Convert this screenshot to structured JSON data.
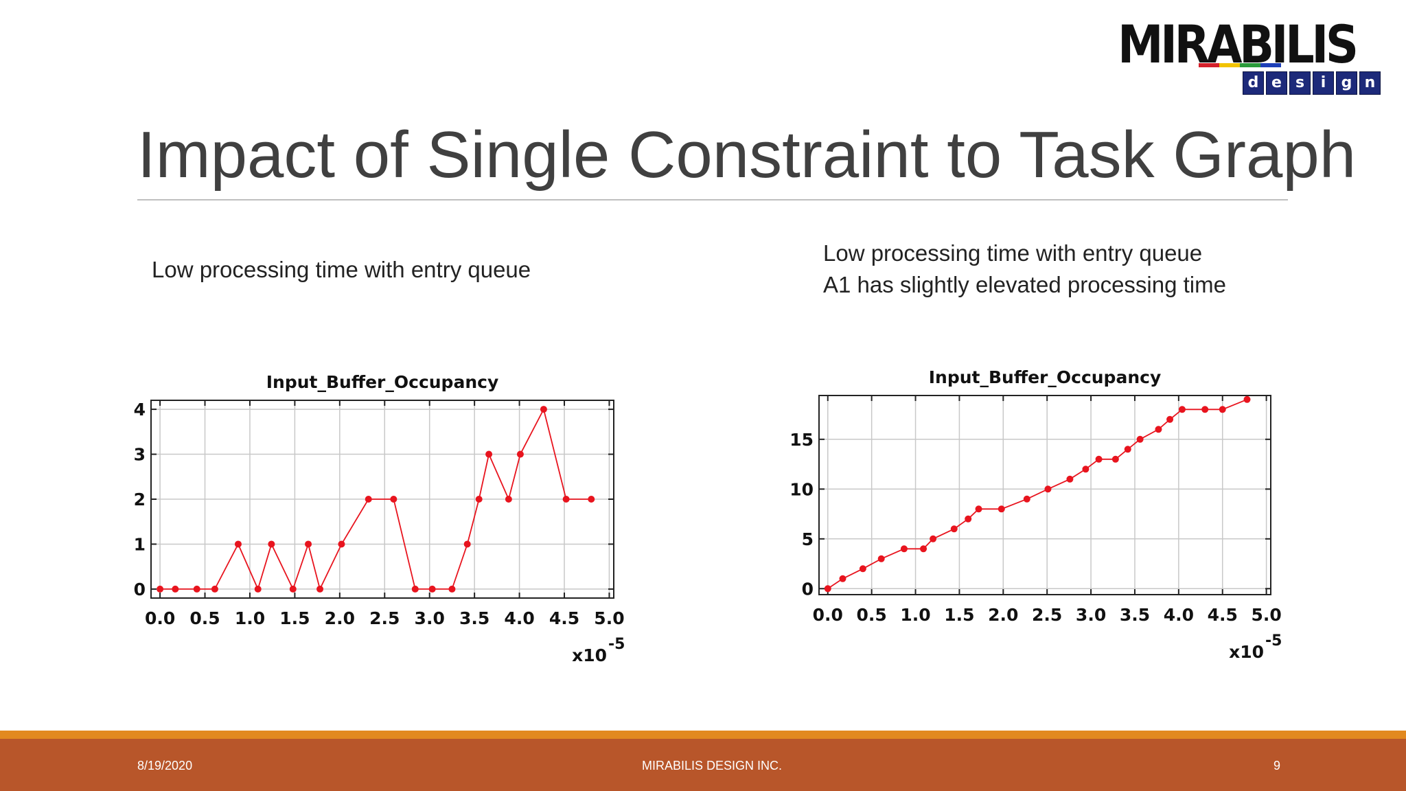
{
  "slide": {
    "title": "Impact of Single Constraint to Task Graph",
    "caption_left": "Low processing time with entry queue",
    "caption_right_line1": "Low processing time with entry queue",
    "caption_right_line2": "A1 has slightly elevated processing time"
  },
  "logo": {
    "name": "MIRABILIS",
    "sub_letters": [
      "d",
      "e",
      "s",
      "i",
      "g",
      "n"
    ],
    "stripe_colors": [
      "#d4202a",
      "#f2c300",
      "#2a9a3a",
      "#1d3fb8"
    ]
  },
  "footer": {
    "date": "8/19/2020",
    "company": "MIRABILIS DESIGN INC.",
    "page": "9"
  },
  "colors": {
    "series": "#e8141e",
    "grid": "#c8c8c8",
    "footer_bar": "#b8562a",
    "footer_accent": "#e2891f"
  },
  "chart_data": [
    {
      "type": "line",
      "title": "Input_Buffer_Occupancy",
      "x_multiplier_label": "x10",
      "x_multiplier_exp": "-5",
      "xlim": [
        -0.1,
        5.05
      ],
      "ylim": [
        -0.2,
        4.2
      ],
      "x_ticks": [
        0.0,
        0.5,
        1.0,
        1.5,
        2.0,
        2.5,
        3.0,
        3.5,
        4.0,
        4.5,
        5.0
      ],
      "x_tick_labels": [
        "0.0",
        "0.5",
        "1.0",
        "1.5",
        "2.0",
        "2.5",
        "3.0",
        "3.5",
        "4.0",
        "4.5",
        "5.0"
      ],
      "y_ticks": [
        0,
        1,
        2,
        3,
        4
      ],
      "y_tick_labels": [
        "0",
        "1",
        "2",
        "3",
        "4"
      ],
      "grid": true,
      "series": [
        {
          "x": [
            0.0,
            0.17,
            0.41,
            0.61,
            0.87,
            1.09,
            1.24,
            1.48,
            1.65,
            1.78,
            2.02,
            2.32,
            2.6,
            2.84,
            3.03,
            3.25,
            3.42,
            3.55,
            3.66,
            3.88,
            4.01,
            4.27,
            4.52,
            4.8
          ],
          "y": [
            0,
            0,
            0,
            0,
            1,
            0,
            1,
            0,
            1,
            0,
            1,
            2,
            2,
            0,
            0,
            0,
            1,
            2,
            3,
            2,
            3,
            4,
            2,
            2
          ]
        }
      ]
    },
    {
      "type": "line",
      "title": "Input_Buffer_Occupancy",
      "x_multiplier_label": "x10",
      "x_multiplier_exp": "-5",
      "xlim": [
        -0.1,
        5.05
      ],
      "ylim": [
        -0.6,
        19.4
      ],
      "x_ticks": [
        0.0,
        0.5,
        1.0,
        1.5,
        2.0,
        2.5,
        3.0,
        3.5,
        4.0,
        4.5,
        5.0
      ],
      "x_tick_labels": [
        "0.0",
        "0.5",
        "1.0",
        "1.5",
        "2.0",
        "2.5",
        "3.0",
        "3.5",
        "4.0",
        "4.5",
        "5.0"
      ],
      "y_ticks": [
        0,
        5,
        10,
        15
      ],
      "y_tick_labels": [
        "0",
        "5",
        "10",
        "15"
      ],
      "grid": true,
      "series": [
        {
          "x": [
            0.0,
            0.17,
            0.4,
            0.61,
            0.87,
            1.09,
            1.2,
            1.44,
            1.6,
            1.72,
            1.98,
            2.27,
            2.51,
            2.76,
            2.94,
            3.09,
            3.28,
            3.42,
            3.56,
            3.77,
            3.9,
            4.04,
            4.3,
            4.5,
            4.78
          ],
          "y": [
            0,
            1,
            2,
            3,
            4,
            4,
            5,
            6,
            7,
            8,
            8,
            9,
            10,
            11,
            12,
            13,
            13,
            14,
            15,
            16,
            17,
            18,
            18,
            18,
            19
          ]
        }
      ]
    }
  ]
}
